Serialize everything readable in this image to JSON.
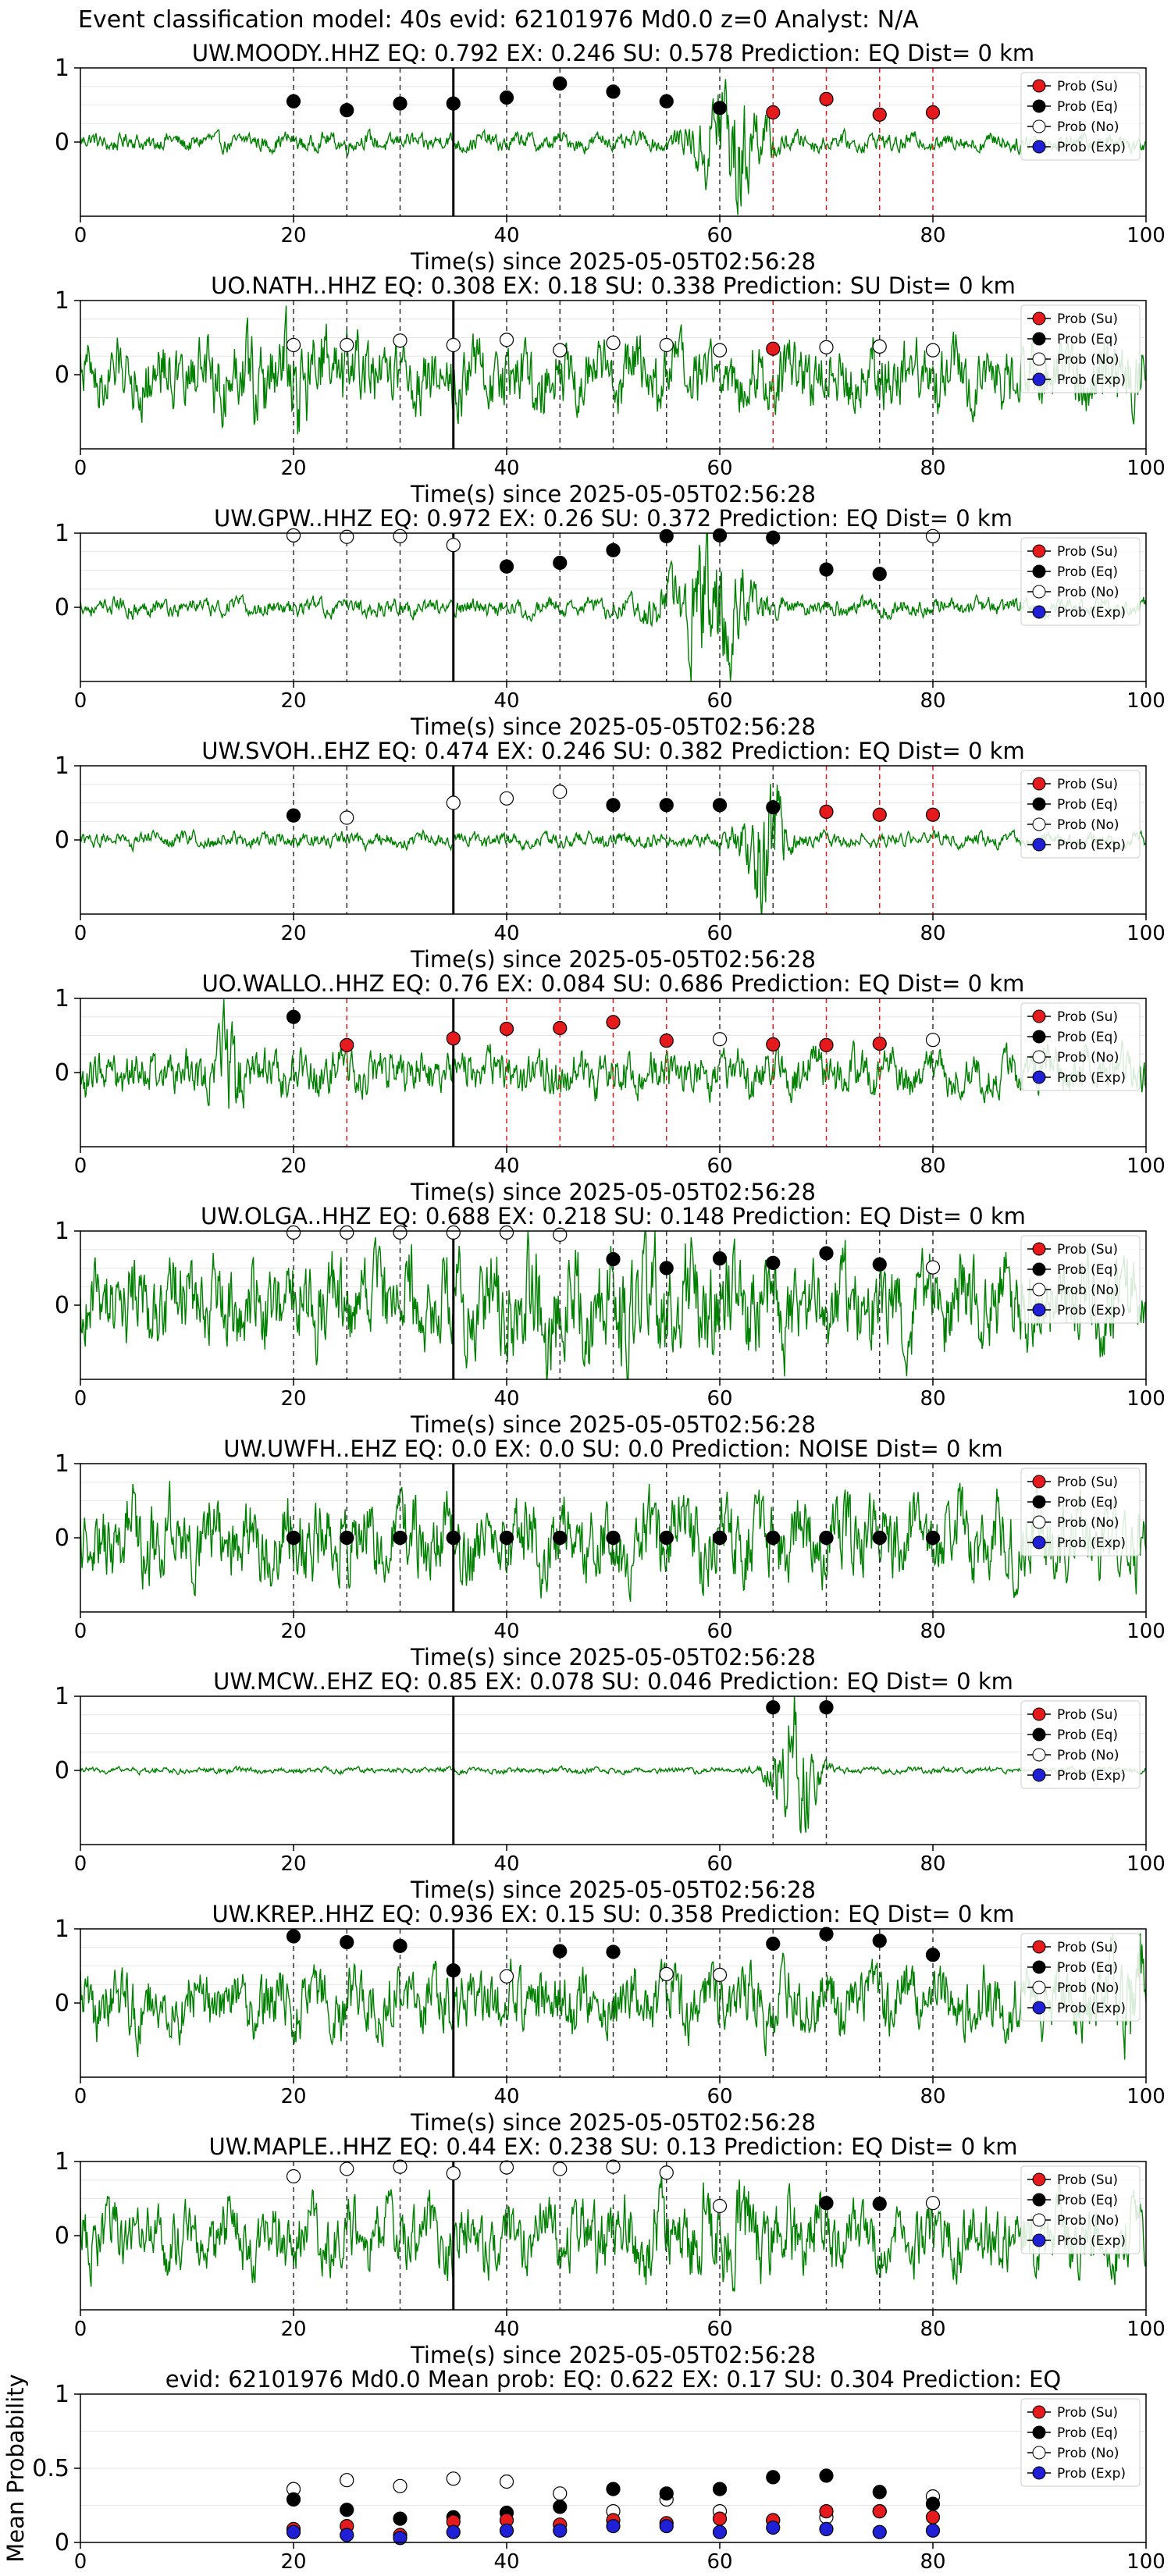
{
  "figure": {
    "title": "Event classification model: 40s evid: 62101976 Md0.0 z=0 Analyst: N/A",
    "colors": {
      "trace": "#008000",
      "su": "#e41a1c",
      "eq": "#000000",
      "no": "#ffffff",
      "exp": "#1f1fd6",
      "pick_line": "#000000"
    },
    "legend_labels": [
      "Prob (Su)",
      "Prob (Eq)",
      "Prob (No)",
      "Prob (Exp)"
    ]
  },
  "chart_data": [
    {
      "type": "line",
      "title": "UW.MOODY..HHZ   EQ: 0.792  EX: 0.246  SU: 0.578   Prediction: EQ    Dist= 0 km",
      "xlabel": "Time(s) since 2025-05-05T02:56:28",
      "xlim": [
        0,
        100
      ],
      "ylim": [
        -1,
        1
      ],
      "xticks": [
        0,
        20,
        40,
        60,
        80,
        100
      ],
      "yticks": [
        1,
        0
      ],
      "pick_time": 35,
      "waveform": {
        "amp": 0.12,
        "burst_center": 61,
        "burst_width": 3,
        "burst_amp": 0.8
      },
      "windows": [
        {
          "t": 20,
          "p": 0.55,
          "cls": "eq"
        },
        {
          "t": 25,
          "p": 0.43,
          "cls": "eq"
        },
        {
          "t": 30,
          "p": 0.52,
          "cls": "eq"
        },
        {
          "t": 35,
          "p": 0.52,
          "cls": "eq"
        },
        {
          "t": 40,
          "p": 0.6,
          "cls": "eq"
        },
        {
          "t": 45,
          "p": 0.79,
          "cls": "eq"
        },
        {
          "t": 50,
          "p": 0.68,
          "cls": "eq"
        },
        {
          "t": 55,
          "p": 0.55,
          "cls": "eq"
        },
        {
          "t": 60,
          "p": 0.46,
          "cls": "eq"
        },
        {
          "t": 65,
          "p": 0.4,
          "cls": "su"
        },
        {
          "t": 70,
          "p": 0.58,
          "cls": "su"
        },
        {
          "t": 75,
          "p": 0.37,
          "cls": "su"
        },
        {
          "t": 80,
          "p": 0.4,
          "cls": "su"
        }
      ]
    },
    {
      "type": "line",
      "title": "UO.NATH..HHZ   EQ: 0.308  EX: 0.18  SU: 0.338   Prediction: SU    Dist= 0 km",
      "xlabel": "Time(s) since 2025-05-05T02:56:28",
      "xlim": [
        0,
        100
      ],
      "ylim": [
        -1,
        1
      ],
      "xticks": [
        0,
        20,
        40,
        60,
        80,
        100
      ],
      "yticks": [
        1,
        0
      ],
      "pick_time": 35,
      "waveform": {
        "amp": 0.45,
        "burst_center": 20,
        "burst_width": 6,
        "burst_amp": 0.3
      },
      "windows": [
        {
          "t": 20,
          "p": 0.4,
          "cls": "no"
        },
        {
          "t": 25,
          "p": 0.4,
          "cls": "no"
        },
        {
          "t": 30,
          "p": 0.46,
          "cls": "no"
        },
        {
          "t": 35,
          "p": 0.4,
          "cls": "no"
        },
        {
          "t": 40,
          "p": 0.47,
          "cls": "no"
        },
        {
          "t": 45,
          "p": 0.33,
          "cls": "no"
        },
        {
          "t": 50,
          "p": 0.43,
          "cls": "no"
        },
        {
          "t": 55,
          "p": 0.4,
          "cls": "no"
        },
        {
          "t": 60,
          "p": 0.33,
          "cls": "no"
        },
        {
          "t": 65,
          "p": 0.35,
          "cls": "su"
        },
        {
          "t": 70,
          "p": 0.37,
          "cls": "no"
        },
        {
          "t": 75,
          "p": 0.38,
          "cls": "no"
        },
        {
          "t": 80,
          "p": 0.33,
          "cls": "no"
        }
      ]
    },
    {
      "type": "line",
      "title": "UW.GPW..HHZ   EQ: 0.972  EX: 0.26  SU: 0.372   Prediction: EQ    Dist= 0 km",
      "xlabel": "Time(s) since 2025-05-05T02:56:28",
      "xlim": [
        0,
        100
      ],
      "ylim": [
        -1,
        1
      ],
      "xticks": [
        0,
        20,
        40,
        60,
        80,
        100
      ],
      "yticks": [
        1,
        0
      ],
      "pick_time": 35,
      "waveform": {
        "amp": 0.12,
        "burst_center": 59,
        "burst_width": 4,
        "burst_amp": 0.8
      },
      "windows": [
        {
          "t": 20,
          "p": 0.97,
          "cls": "no"
        },
        {
          "t": 25,
          "p": 0.95,
          "cls": "no"
        },
        {
          "t": 30,
          "p": 0.96,
          "cls": "no"
        },
        {
          "t": 35,
          "p": 0.84,
          "cls": "no"
        },
        {
          "t": 40,
          "p": 0.55,
          "cls": "eq"
        },
        {
          "t": 45,
          "p": 0.6,
          "cls": "eq"
        },
        {
          "t": 50,
          "p": 0.77,
          "cls": "eq"
        },
        {
          "t": 55,
          "p": 0.96,
          "cls": "eq"
        },
        {
          "t": 60,
          "p": 0.97,
          "cls": "eq"
        },
        {
          "t": 65,
          "p": 0.94,
          "cls": "eq"
        },
        {
          "t": 70,
          "p": 0.51,
          "cls": "eq"
        },
        {
          "t": 75,
          "p": 0.45,
          "cls": "eq"
        },
        {
          "t": 80,
          "p": 0.96,
          "cls": "no"
        }
      ]
    },
    {
      "type": "line",
      "title": "UW.SVOH..EHZ   EQ: 0.474  EX: 0.246  SU: 0.382   Prediction: EQ    Dist= 0 km",
      "xlabel": "Time(s) since 2025-05-05T02:56:28",
      "xlim": [
        0,
        100
      ],
      "ylim": [
        -1,
        1
      ],
      "xticks": [
        0,
        20,
        40,
        60,
        80,
        100
      ],
      "yticks": [
        1,
        0
      ],
      "pick_time": 35,
      "waveform": {
        "amp": 0.1,
        "burst_center": 64,
        "burst_width": 2,
        "burst_amp": 0.9
      },
      "windows": [
        {
          "t": 20,
          "p": 0.33,
          "cls": "eq"
        },
        {
          "t": 25,
          "p": 0.3,
          "cls": "no"
        },
        {
          "t": 35,
          "p": 0.5,
          "cls": "no"
        },
        {
          "t": 40,
          "p": 0.56,
          "cls": "no"
        },
        {
          "t": 45,
          "p": 0.65,
          "cls": "no"
        },
        {
          "t": 50,
          "p": 0.47,
          "cls": "eq"
        },
        {
          "t": 55,
          "p": 0.47,
          "cls": "eq"
        },
        {
          "t": 60,
          "p": 0.47,
          "cls": "eq"
        },
        {
          "t": 65,
          "p": 0.44,
          "cls": "eq"
        },
        {
          "t": 70,
          "p": 0.38,
          "cls": "su"
        },
        {
          "t": 75,
          "p": 0.34,
          "cls": "su"
        },
        {
          "t": 80,
          "p": 0.34,
          "cls": "su"
        }
      ]
    },
    {
      "type": "line",
      "title": "UO.WALLO..HHZ   EQ: 0.76  EX: 0.084  SU: 0.686   Prediction: EQ    Dist= 0 km",
      "xlabel": "Time(s) since 2025-05-05T02:56:28",
      "xlim": [
        0,
        100
      ],
      "ylim": [
        -1,
        1
      ],
      "xticks": [
        0,
        20,
        40,
        60,
        80,
        100
      ],
      "yticks": [
        1,
        0
      ],
      "pick_time": 35,
      "waveform": {
        "amp": 0.3,
        "burst_center": 14,
        "burst_width": 1,
        "burst_amp": 0.6
      },
      "windows": [
        {
          "t": 20,
          "p": 0.75,
          "cls": "eq"
        },
        {
          "t": 25,
          "p": 0.37,
          "cls": "su"
        },
        {
          "t": 35,
          "p": 0.46,
          "cls": "su"
        },
        {
          "t": 40,
          "p": 0.59,
          "cls": "su"
        },
        {
          "t": 45,
          "p": 0.6,
          "cls": "su"
        },
        {
          "t": 50,
          "p": 0.68,
          "cls": "su"
        },
        {
          "t": 55,
          "p": 0.43,
          "cls": "su"
        },
        {
          "t": 60,
          "p": 0.45,
          "cls": "no"
        },
        {
          "t": 65,
          "p": 0.38,
          "cls": "su"
        },
        {
          "t": 70,
          "p": 0.37,
          "cls": "su"
        },
        {
          "t": 75,
          "p": 0.39,
          "cls": "su"
        },
        {
          "t": 80,
          "p": 0.44,
          "cls": "no"
        }
      ]
    },
    {
      "type": "line",
      "title": "UW.OLGA..HHZ   EQ: 0.688  EX: 0.218  SU: 0.148   Prediction: EQ    Dist= 0 km",
      "xlabel": "Time(s) since 2025-05-05T02:56:28",
      "xlim": [
        0,
        100
      ],
      "ylim": [
        -1,
        1
      ],
      "xticks": [
        0,
        20,
        40,
        60,
        80,
        100
      ],
      "yticks": [
        1,
        0
      ],
      "pick_time": 35,
      "waveform": {
        "amp": 0.6,
        "burst_center": 50,
        "burst_width": 15,
        "burst_amp": 0.2
      },
      "windows": [
        {
          "t": 20,
          "p": 0.98,
          "cls": "no"
        },
        {
          "t": 25,
          "p": 0.98,
          "cls": "no"
        },
        {
          "t": 30,
          "p": 0.98,
          "cls": "no"
        },
        {
          "t": 35,
          "p": 0.98,
          "cls": "no"
        },
        {
          "t": 40,
          "p": 0.98,
          "cls": "no"
        },
        {
          "t": 45,
          "p": 0.95,
          "cls": "no"
        },
        {
          "t": 50,
          "p": 0.62,
          "cls": "eq"
        },
        {
          "t": 55,
          "p": 0.5,
          "cls": "eq"
        },
        {
          "t": 60,
          "p": 0.63,
          "cls": "eq"
        },
        {
          "t": 65,
          "p": 0.57,
          "cls": "eq"
        },
        {
          "t": 70,
          "p": 0.7,
          "cls": "eq"
        },
        {
          "t": 75,
          "p": 0.55,
          "cls": "eq"
        },
        {
          "t": 80,
          "p": 0.51,
          "cls": "no"
        }
      ]
    },
    {
      "type": "line",
      "title": "UW.UWFH..EHZ   EQ: 0.0  EX: 0.0  SU: 0.0   Prediction: NOISE    Dist= 0 km",
      "xlabel": "Time(s) since 2025-05-05T02:56:28",
      "xlim": [
        0,
        100
      ],
      "ylim": [
        -1,
        1
      ],
      "xticks": [
        0,
        20,
        40,
        60,
        80,
        100
      ],
      "yticks": [
        1,
        0
      ],
      "pick_time": 35,
      "waveform": {
        "amp": 0.55,
        "burst_center": 50,
        "burst_width": 0.1,
        "burst_amp": 0
      },
      "windows": [
        {
          "t": 20,
          "p": 0.0,
          "cls": "no"
        },
        {
          "t": 25,
          "p": 0.0,
          "cls": "no"
        },
        {
          "t": 30,
          "p": 0.0,
          "cls": "no"
        },
        {
          "t": 35,
          "p": 0.0,
          "cls": "no"
        },
        {
          "t": 40,
          "p": 0.0,
          "cls": "no"
        },
        {
          "t": 45,
          "p": 0.0,
          "cls": "no"
        },
        {
          "t": 50,
          "p": 0.0,
          "cls": "no"
        },
        {
          "t": 55,
          "p": 0.0,
          "cls": "no"
        },
        {
          "t": 60,
          "p": 0.0,
          "cls": "no"
        },
        {
          "t": 65,
          "p": 0.0,
          "cls": "no"
        },
        {
          "t": 70,
          "p": 0.0,
          "cls": "no"
        },
        {
          "t": 75,
          "p": 0.0,
          "cls": "no"
        },
        {
          "t": 80,
          "p": 0.0,
          "cls": "no"
        }
      ],
      "windows_overlay": [
        {
          "t": 20,
          "p": 0.0,
          "cls": "eq"
        },
        {
          "t": 25,
          "p": 0.0,
          "cls": "eq"
        },
        {
          "t": 30,
          "p": 0.0,
          "cls": "eq"
        },
        {
          "t": 35,
          "p": 0.0,
          "cls": "eq"
        },
        {
          "t": 40,
          "p": 0.0,
          "cls": "eq"
        },
        {
          "t": 45,
          "p": 0.0,
          "cls": "eq"
        },
        {
          "t": 50,
          "p": 0.0,
          "cls": "eq"
        },
        {
          "t": 55,
          "p": 0.0,
          "cls": "eq"
        },
        {
          "t": 60,
          "p": 0.0,
          "cls": "eq"
        },
        {
          "t": 65,
          "p": 0.0,
          "cls": "eq"
        },
        {
          "t": 70,
          "p": 0.0,
          "cls": "eq"
        },
        {
          "t": 75,
          "p": 0.0,
          "cls": "eq"
        },
        {
          "t": 80,
          "p": 0.0,
          "cls": "eq"
        }
      ]
    },
    {
      "type": "line",
      "title": "UW.MCW..EHZ   EQ: 0.85  EX: 0.078  SU: 0.046   Prediction: EQ    Dist= 0 km",
      "xlabel": "Time(s) since 2025-05-05T02:56:28",
      "xlim": [
        0,
        100
      ],
      "ylim": [
        -1,
        1
      ],
      "xticks": [
        0,
        20,
        40,
        60,
        80,
        100
      ],
      "yticks": [
        1,
        0
      ],
      "pick_time": 35,
      "waveform": {
        "amp": 0.04,
        "burst_center": 67,
        "burst_width": 2,
        "burst_amp": 0.95
      },
      "windows": [
        {
          "t": 65,
          "p": 0.85,
          "cls": "eq"
        },
        {
          "t": 70,
          "p": 0.85,
          "cls": "eq"
        }
      ]
    },
    {
      "type": "line",
      "title": "UW.KREP..HHZ   EQ: 0.936  EX: 0.15  SU: 0.358   Prediction: EQ    Dist= 0 km",
      "xlabel": "Time(s) since 2025-05-05T02:56:28",
      "xlim": [
        0,
        100
      ],
      "ylim": [
        -1,
        1
      ],
      "xticks": [
        0,
        20,
        40,
        60,
        80,
        100
      ],
      "yticks": [
        1,
        0
      ],
      "pick_time": 35,
      "waveform": {
        "amp": 0.45,
        "burst_center": 98,
        "burst_width": 2,
        "burst_amp": 0.4
      },
      "windows": [
        {
          "t": 20,
          "p": 0.9,
          "cls": "eq"
        },
        {
          "t": 25,
          "p": 0.82,
          "cls": "eq"
        },
        {
          "t": 30,
          "p": 0.77,
          "cls": "eq"
        },
        {
          "t": 35,
          "p": 0.44,
          "cls": "eq"
        },
        {
          "t": 40,
          "p": 0.36,
          "cls": "no"
        },
        {
          "t": 45,
          "p": 0.7,
          "cls": "eq"
        },
        {
          "t": 50,
          "p": 0.69,
          "cls": "eq"
        },
        {
          "t": 55,
          "p": 0.39,
          "cls": "no"
        },
        {
          "t": 60,
          "p": 0.38,
          "cls": "no"
        },
        {
          "t": 65,
          "p": 0.8,
          "cls": "eq"
        },
        {
          "t": 70,
          "p": 0.93,
          "cls": "eq"
        },
        {
          "t": 75,
          "p": 0.84,
          "cls": "eq"
        },
        {
          "t": 80,
          "p": 0.65,
          "cls": "eq"
        }
      ]
    },
    {
      "type": "line",
      "title": "UW.MAPLE..HHZ   EQ: 0.44  EX: 0.238  SU: 0.13   Prediction: EQ    Dist= 0 km",
      "xlabel": "Time(s) since 2025-05-05T02:56:28",
      "xlim": [
        0,
        100
      ],
      "ylim": [
        -1,
        1
      ],
      "xticks": [
        0,
        20,
        40,
        60,
        80,
        100
      ],
      "yticks": [
        1,
        0
      ],
      "pick_time": 35,
      "waveform": {
        "amp": 0.45,
        "burst_center": 60,
        "burst_width": 8,
        "burst_amp": 0.2
      },
      "windows": [
        {
          "t": 20,
          "p": 0.8,
          "cls": "no"
        },
        {
          "t": 25,
          "p": 0.9,
          "cls": "no"
        },
        {
          "t": 30,
          "p": 0.93,
          "cls": "no"
        },
        {
          "t": 35,
          "p": 0.84,
          "cls": "no"
        },
        {
          "t": 40,
          "p": 0.92,
          "cls": "no"
        },
        {
          "t": 45,
          "p": 0.9,
          "cls": "no"
        },
        {
          "t": 50,
          "p": 0.93,
          "cls": "no"
        },
        {
          "t": 55,
          "p": 0.85,
          "cls": "no"
        },
        {
          "t": 60,
          "p": 0.4,
          "cls": "no"
        },
        {
          "t": 70,
          "p": 0.44,
          "cls": "eq"
        },
        {
          "t": 75,
          "p": 0.43,
          "cls": "eq"
        },
        {
          "t": 80,
          "p": 0.44,
          "cls": "no"
        }
      ]
    },
    {
      "type": "scatter",
      "title": "evid: 62101976  Md0.0   Mean prob:   EQ: 0.622  EX: 0.17  SU: 0.304   Prediction: EQ",
      "ylabel": "Mean Probability",
      "xlim": [
        0,
        100
      ],
      "ylim": [
        0,
        1
      ],
      "xticks": [
        0,
        20,
        40,
        60,
        80,
        100
      ],
      "yticks": [
        1.0,
        0.5,
        0.0
      ],
      "x": [
        20,
        25,
        30,
        35,
        40,
        45,
        50,
        55,
        60,
        65,
        70,
        75,
        80
      ],
      "series": [
        {
          "cls": "no",
          "values": [
            0.36,
            0.42,
            0.38,
            0.43,
            0.41,
            0.33,
            0.21,
            0.29,
            0.21,
            0.15,
            0.17,
            0.21,
            0.31
          ]
        },
        {
          "cls": "eq",
          "values": [
            0.29,
            0.22,
            0.16,
            0.17,
            0.2,
            0.24,
            0.36,
            0.33,
            0.36,
            0.44,
            0.45,
            0.34,
            0.26
          ]
        },
        {
          "cls": "su",
          "values": [
            0.09,
            0.11,
            0.05,
            0.14,
            0.15,
            0.12,
            0.15,
            0.13,
            0.16,
            0.15,
            0.21,
            0.21,
            0.17
          ]
        },
        {
          "cls": "exp",
          "values": [
            0.07,
            0.05,
            0.03,
            0.07,
            0.08,
            0.08,
            0.11,
            0.11,
            0.07,
            0.1,
            0.09,
            0.07,
            0.08
          ]
        }
      ]
    }
  ]
}
